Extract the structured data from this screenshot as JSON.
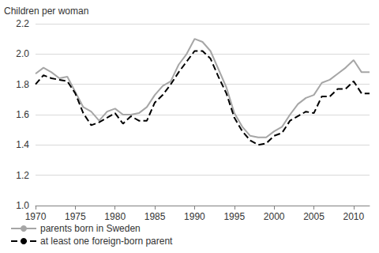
{
  "chart_data": {
    "type": "line",
    "y_label": "Children per woman",
    "x": [
      1970,
      1971,
      1972,
      1973,
      1974,
      1975,
      1976,
      1977,
      1978,
      1979,
      1980,
      1981,
      1982,
      1983,
      1984,
      1985,
      1986,
      1987,
      1988,
      1989,
      1990,
      1991,
      1992,
      1993,
      1994,
      1995,
      1996,
      1997,
      1998,
      1999,
      2000,
      2001,
      2002,
      2003,
      2004,
      2005,
      2006,
      2007,
      2008,
      2009,
      2010,
      2011,
      2012
    ],
    "series": [
      {
        "name": "parents born in Sweden",
        "color": "#a6a6a6",
        "line_style": "solid",
        "values": [
          1.87,
          1.91,
          1.88,
          1.84,
          1.85,
          1.75,
          1.65,
          1.62,
          1.56,
          1.62,
          1.64,
          1.6,
          1.6,
          1.61,
          1.65,
          1.73,
          1.79,
          1.82,
          1.93,
          2.0,
          2.1,
          2.08,
          2.02,
          1.9,
          1.78,
          1.61,
          1.52,
          1.46,
          1.45,
          1.45,
          1.49,
          1.52,
          1.6,
          1.67,
          1.71,
          1.73,
          1.81,
          1.83,
          1.87,
          1.91,
          1.96,
          1.88,
          1.88
        ]
      },
      {
        "name": "at least one foreign-born parent",
        "color": "#000000",
        "line_style": "dashed",
        "values": [
          1.8,
          1.86,
          1.84,
          1.83,
          1.82,
          1.74,
          1.61,
          1.53,
          1.55,
          1.58,
          1.61,
          1.54,
          1.59,
          1.56,
          1.56,
          1.68,
          1.73,
          1.8,
          1.88,
          1.95,
          2.02,
          2.02,
          1.97,
          1.85,
          1.74,
          1.58,
          1.49,
          1.43,
          1.4,
          1.41,
          1.46,
          1.48,
          1.56,
          1.59,
          1.62,
          1.61,
          1.72,
          1.72,
          1.77,
          1.77,
          1.82,
          1.74,
          1.74
        ]
      }
    ],
    "xlim": [
      1970,
      2012
    ],
    "xticks": [
      1970,
      1975,
      1980,
      1985,
      1990,
      1995,
      2000,
      2005,
      2010
    ],
    "ylim": [
      1.0,
      2.2
    ],
    "yticks": [
      {
        "value": 1.0,
        "label": "1.0"
      },
      1.2,
      1.4,
      1.6,
      1.8,
      {
        "value": 2.0,
        "label": "2.0"
      },
      2.2
    ],
    "grid": true,
    "legend": "bottom"
  }
}
